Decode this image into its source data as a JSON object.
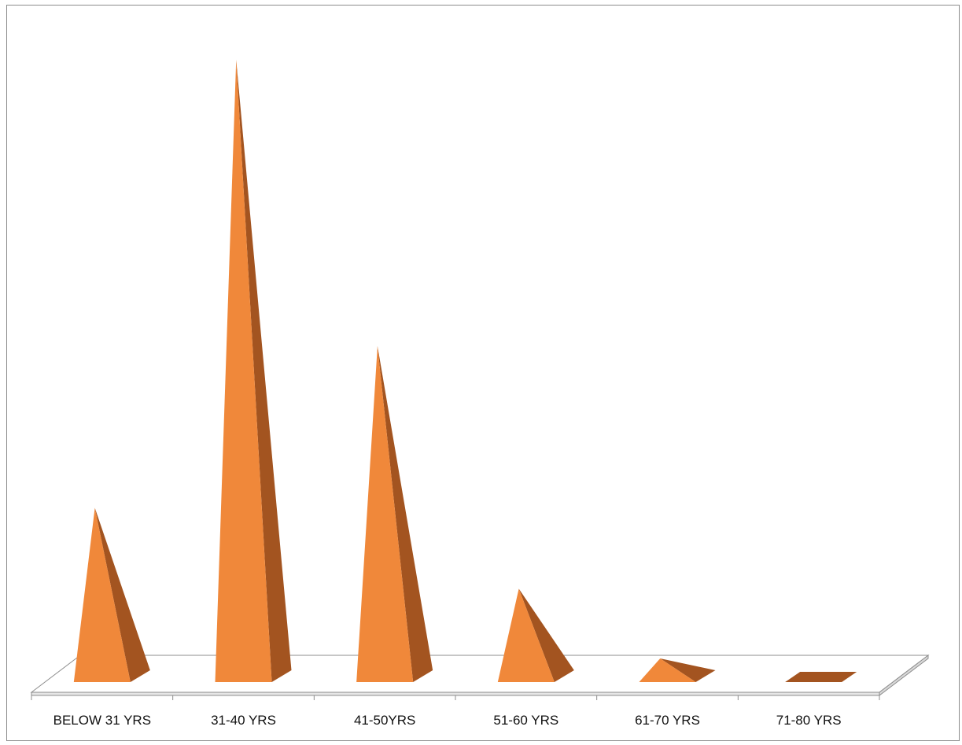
{
  "chart_data": {
    "type": "bar",
    "bar_shape": "pyramid",
    "title": "",
    "xlabel": "",
    "ylabel": "",
    "categories": [
      "BELOW 31 YRS",
      "31-40 YRS",
      "41-50YRS",
      "51-60 YRS",
      "61-70 YRS",
      "71-80 YRS"
    ],
    "values": [
      28,
      100,
      54,
      15,
      1,
      0
    ],
    "ylim": [
      0,
      100
    ],
    "grid": false,
    "legend": "none",
    "colors": {
      "front": "#f0883a",
      "side": "#a35420",
      "floor_fill": "#ffffff",
      "floor_edge": "#8c8c8c"
    }
  }
}
